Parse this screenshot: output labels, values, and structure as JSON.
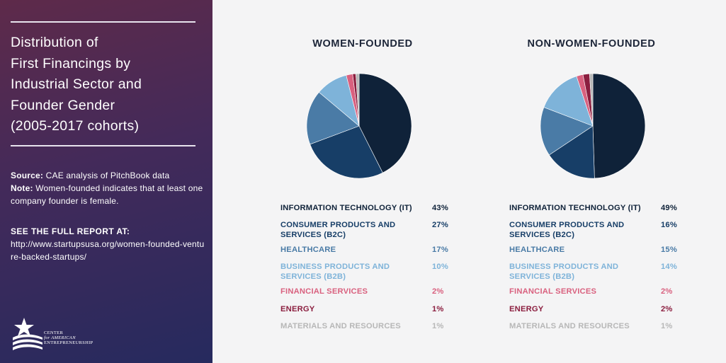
{
  "sidebar": {
    "title_lines": [
      "Distribution of",
      "First Financings by",
      "Industrial Sector and",
      "Founder Gender",
      "(2005-2017 cohorts)"
    ],
    "source_label": "Source:",
    "source_text": "CAE analysis of PitchBook data",
    "note_label": "Note:",
    "note_text": "Women-founded indicates that at least one company founder is female.",
    "report_label": "SEE THE FULL REPORT AT:",
    "report_url": "http://www.startupsusa.org/women-founded-venture-backed-startups/",
    "logo_lines": [
      "CENTER",
      "for AMERICAN",
      "ENTREPRENEURSHIP"
    ]
  },
  "colors": {
    "it": "#0f2239",
    "b2c": "#173e67",
    "healthcare": "#4a7ba6",
    "b2b": "#7eb3d9",
    "financial": "#d9617f",
    "energy": "#8b1e3f",
    "materials": "#b7b7b7"
  },
  "chart_data": [
    {
      "type": "pie",
      "title": "WOMEN-FOUNDED",
      "slices": [
        {
          "key": "it",
          "label": "INFORMATION TECHNOLOGY (IT)",
          "value": 43,
          "display": "43%"
        },
        {
          "key": "b2c",
          "label": "CONSUMER PRODUCTS AND SERVICES (B2C)",
          "value": 27,
          "display": "27%"
        },
        {
          "key": "healthcare",
          "label": "HEALTHCARE",
          "value": 17,
          "display": "17%"
        },
        {
          "key": "b2b",
          "label": "BUSINESS PRODUCTS AND SERVICES (B2B)",
          "value": 10,
          "display": "10%"
        },
        {
          "key": "financial",
          "label": "FINANCIAL SERVICES",
          "value": 2,
          "display": "2%"
        },
        {
          "key": "energy",
          "label": "ENERGY",
          "value": 1,
          "display": "1%"
        },
        {
          "key": "materials",
          "label": "MATERIALS AND RESOURCES",
          "value": 1,
          "display": "1%"
        }
      ]
    },
    {
      "type": "pie",
      "title": "NON-WOMEN-FOUNDED",
      "slices": [
        {
          "key": "it",
          "label": "INFORMATION TECHNOLOGY (IT)",
          "value": 49,
          "display": "49%"
        },
        {
          "key": "b2c",
          "label": "CONSUMER PRODUCTS AND SERVICES (B2C)",
          "value": 16,
          "display": "16%"
        },
        {
          "key": "healthcare",
          "label": "HEALTHCARE",
          "value": 15,
          "display": "15%"
        },
        {
          "key": "b2b",
          "label": "BUSINESS PRODUCTS AND SERVICES (B2B)",
          "value": 14,
          "display": "14%"
        },
        {
          "key": "financial",
          "label": "FINANCIAL SERVICES",
          "value": 2,
          "display": "2%"
        },
        {
          "key": "energy",
          "label": "ENERGY",
          "value": 2,
          "display": "2%"
        },
        {
          "key": "materials",
          "label": "MATERIALS AND RESOURCES",
          "value": 1,
          "display": "1%"
        }
      ]
    }
  ]
}
